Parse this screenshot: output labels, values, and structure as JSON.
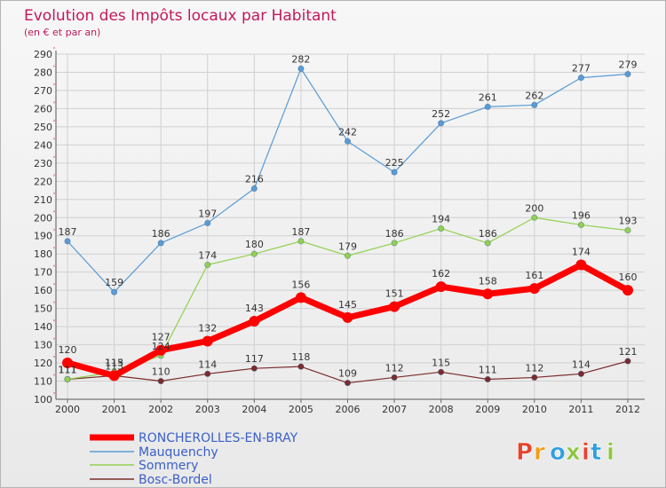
{
  "header": {
    "title": "Evolution des Impôts locaux par Habitant",
    "subtitle": "(en € et par an)"
  },
  "logo": {
    "text": "Proxiti",
    "colors": [
      "#e8412c",
      "#f39c12",
      "#2f9fe0",
      "#8cc63f",
      "#e8412c",
      "#2f9fe0",
      "#8cc63f"
    ]
  },
  "chart_data": {
    "type": "line",
    "title": "Evolution des Impôts locaux par Habitant",
    "subtitle": "(en € et par an)",
    "xlabel": "",
    "ylabel": "",
    "x": [
      "2000",
      "2001",
      "2002",
      "2003",
      "2004",
      "2005",
      "2006",
      "2007",
      "2008",
      "2009",
      "2010",
      "2011",
      "2012"
    ],
    "ylim": [
      100,
      290
    ],
    "ytick_step": 10,
    "grid": true,
    "legend_position": "bottom-left",
    "series": [
      {
        "name": "RONCHEROLLES-EN-BRAY",
        "color": "#ff0000",
        "values": [
          120,
          113,
          127,
          132,
          143,
          156,
          145,
          151,
          162,
          158,
          161,
          174,
          160
        ],
        "labels": [
          "120",
          "113",
          "127",
          "132",
          "143",
          "156",
          "145",
          "151",
          "162",
          "158",
          "161",
          "174",
          "160"
        ]
      },
      {
        "name": "Mauquenchy",
        "color": "#5b9bd5",
        "values": [
          187,
          159,
          186,
          197,
          216,
          282,
          242,
          225,
          252,
          261,
          262,
          277,
          279
        ],
        "labels": [
          "187",
          "159",
          "186",
          "197",
          "216",
          "282",
          "242",
          "225",
          "252",
          "261",
          "262",
          "277",
          "279"
        ]
      },
      {
        "name": "Sommery",
        "color": "#92d050",
        "values": [
          111,
          115,
          124,
          174,
          180,
          187,
          179,
          186,
          194,
          186,
          200,
          196,
          193
        ],
        "labels": [
          "111",
          "115",
          "124",
          "174",
          "180",
          "187",
          "179",
          "186",
          "194",
          "186",
          "200",
          "196",
          "193"
        ]
      },
      {
        "name": "Bosc-Bordel",
        "color": "#7b2c2c",
        "values": [
          111,
          113,
          110,
          114,
          117,
          118,
          109,
          112,
          115,
          111,
          112,
          114,
          121
        ],
        "labels": [
          "111",
          "113",
          "110",
          "114",
          "117",
          "118",
          "109",
          "112",
          "115",
          "111",
          "112",
          "114",
          "121"
        ]
      }
    ]
  }
}
